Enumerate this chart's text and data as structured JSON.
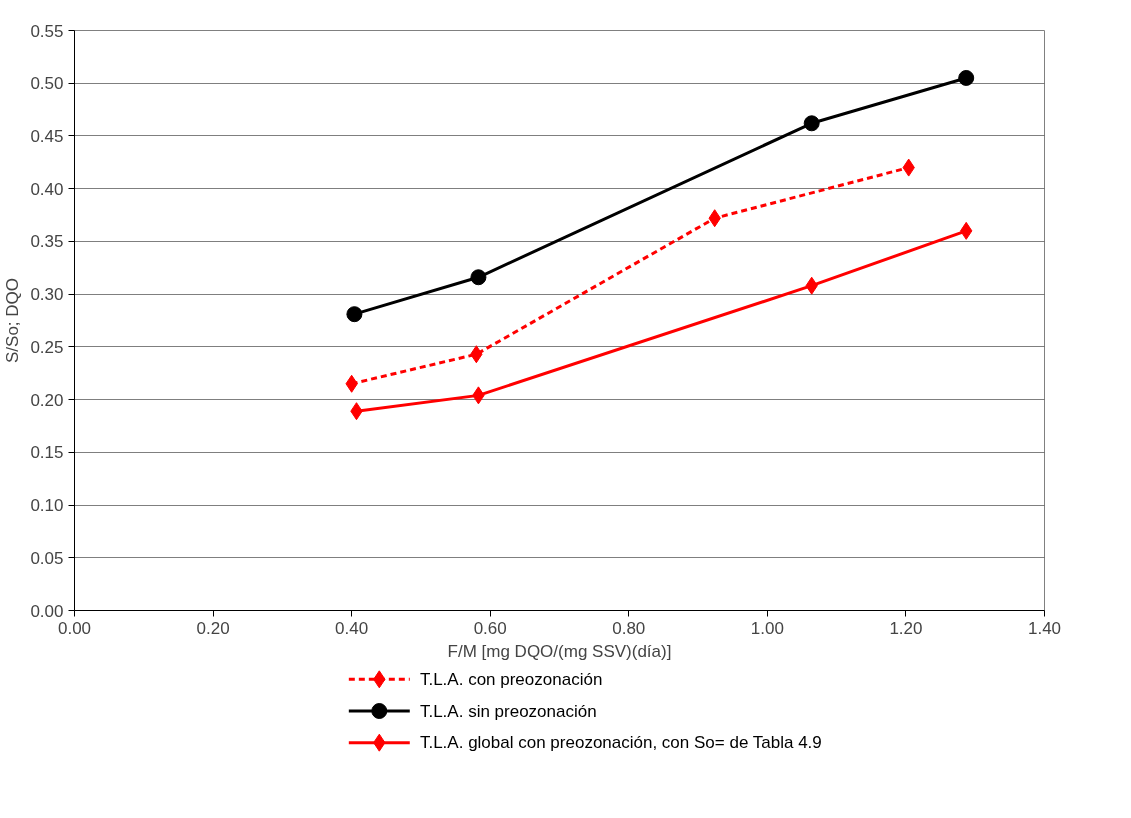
{
  "chart_data": {
    "type": "line",
    "xlabel": "F/M [mg DQO/(mg SSV)(día)]",
    "ylabel": "S/So; DQO",
    "xlim": [
      0,
      1.4
    ],
    "ylim": [
      0,
      0.55
    ],
    "xticks": [
      {
        "value": 0,
        "label": "0.00"
      },
      {
        "value": 0.2,
        "label": "0.20"
      },
      {
        "value": 0.4,
        "label": "0.40"
      },
      {
        "value": 0.6,
        "label": "0.60"
      },
      {
        "value": 0.8,
        "label": "0.80"
      },
      {
        "value": 1.0,
        "label": "1.00"
      },
      {
        "value": 1.2,
        "label": "1.20"
      },
      {
        "value": 1.4,
        "label": "1.40"
      }
    ],
    "yticks": [
      {
        "value": 0,
        "label": "0.00"
      },
      0.05,
      {
        "value": 0.1,
        "label": "0.10"
      },
      0.15,
      {
        "value": 0.2,
        "label": "0.20"
      },
      0.25,
      {
        "value": 0.3,
        "label": "0.30"
      },
      0.35,
      {
        "value": 0.4,
        "label": "0.40"
      },
      0.45,
      {
        "value": 0.5,
        "label": "0.50"
      },
      0.55
    ],
    "grid": "y",
    "legend": "bottom",
    "series": [
      {
        "name": "T.L.A. con preozonación",
        "color": "#ff0000",
        "marker": "diamond",
        "line_style": "dashed",
        "x": [
          0.4,
          0.58,
          0.924,
          1.204
        ],
        "values": [
          0.215,
          0.243,
          0.372,
          0.42
        ]
      },
      {
        "name": "T.L.A. sin preozonación",
        "color": "#000000",
        "marker": "circle",
        "line_style": "solid",
        "x": [
          0.404,
          0.583,
          1.064,
          1.287
        ],
        "values": [
          0.281,
          0.316,
          0.462,
          0.505
        ]
      },
      {
        "name": "T.L.A. global con preozonación, con So= de Tabla 4.9",
        "color": "#ff0000",
        "marker": "diamond",
        "line_style": "solid",
        "x": [
          0.407,
          0.583,
          1.064,
          1.287
        ],
        "values": [
          0.189,
          0.204,
          0.308,
          0.36
        ]
      }
    ]
  }
}
